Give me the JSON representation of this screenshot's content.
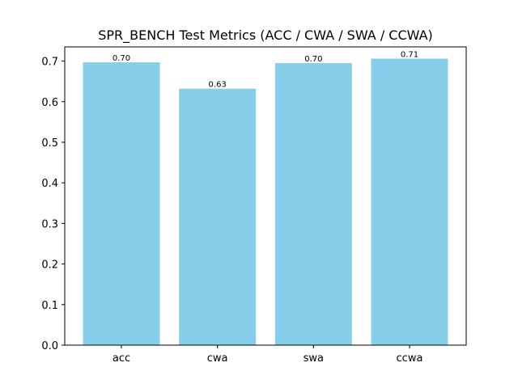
{
  "chart_data": {
    "type": "bar",
    "title": "SPR_BENCH Test Metrics (ACC / CWA / SWA / CCWA)",
    "xlabel": "",
    "ylabel": "",
    "categories": [
      "acc",
      "cwa",
      "swa",
      "ccwa"
    ],
    "values": [
      0.697,
      0.632,
      0.695,
      0.706
    ],
    "data_labels": [
      "0.70",
      "0.63",
      "0.70",
      "0.71"
    ],
    "ylim": [
      0,
      0.735
    ],
    "yticks": [
      0.0,
      0.1,
      0.2,
      0.3,
      0.4,
      0.5,
      0.6,
      0.7
    ],
    "ytick_labels": [
      "0.0",
      "0.1",
      "0.2",
      "0.3",
      "0.4",
      "0.5",
      "0.6",
      "0.7"
    ],
    "grid": false,
    "legend": "none",
    "bar_color": "#87CEEB"
  }
}
